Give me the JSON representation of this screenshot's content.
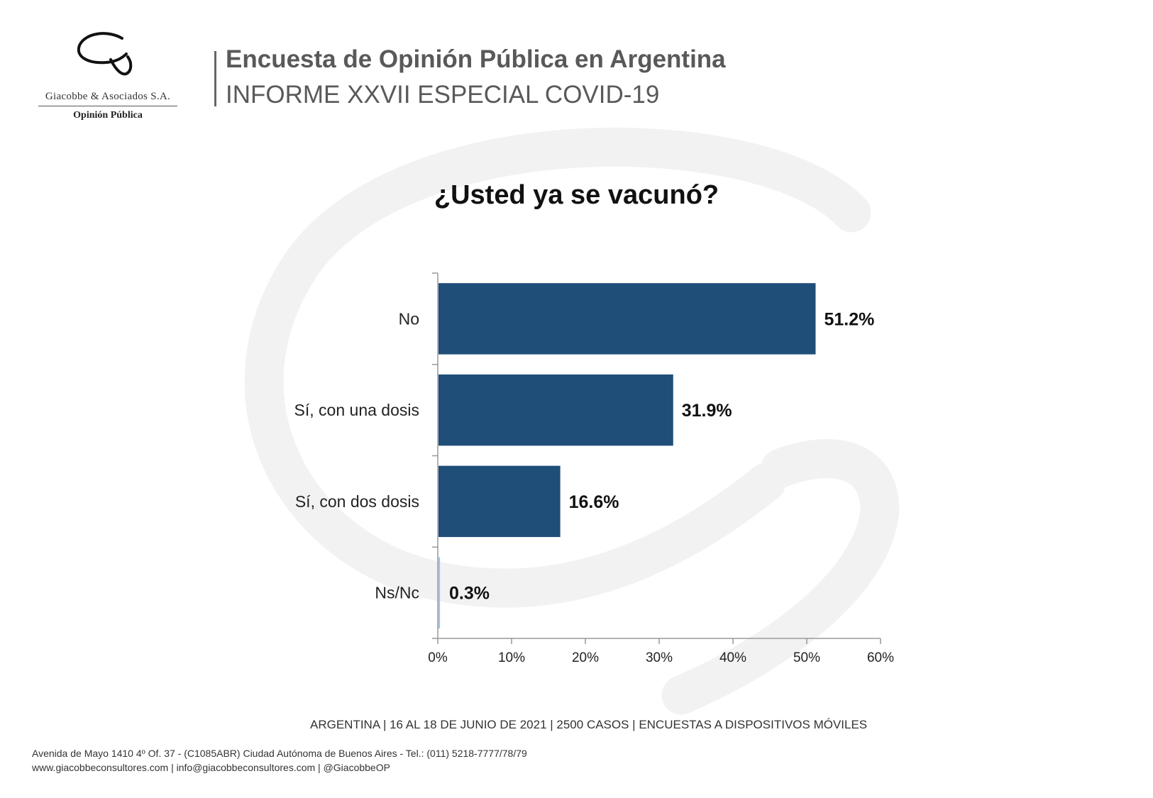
{
  "logo": {
    "firm": "Giacobbe & Asociados S.A.",
    "subtitle": "Opinión Pública"
  },
  "header": {
    "title": "Encuesta de Opinión Pública en Argentina",
    "subtitle": "INFORME XXVII ESPECIAL COVID-19"
  },
  "colors": {
    "bar": "#1F4E79",
    "accent_bar": "#9DC3E6",
    "header_text": "#595959"
  },
  "chart_data": {
    "type": "bar",
    "orientation": "horizontal",
    "title": "¿Usted ya se vacunó?",
    "categories": [
      "No",
      "Sí, con una dosis",
      "Sí, con dos dosis",
      "Ns/Nc"
    ],
    "values": [
      51.2,
      31.9,
      16.6,
      0.3
    ],
    "value_labels": [
      "51.2%",
      "31.9%",
      "16.6%",
      "0.3%"
    ],
    "xlim": [
      0,
      60
    ],
    "xticks": [
      "0%",
      "10%",
      "20%",
      "30%",
      "40%",
      "50%",
      "60%"
    ],
    "grid": false,
    "legend": "none"
  },
  "footer": {
    "survey_info": "ARGENTINA | 16 AL 18 DE JUNIO DE 2021 | 2500 CASOS | ENCUESTAS A DISPOSITIVOS MÓVILES",
    "address": "Avenida de Mayo 1410 4º Of. 37 - (C1085ABR) Ciudad Autónoma de Buenos Aires - Tel.: (011) 5218-7777/78/79",
    "contact": "www.giacobbeconsultores.com | info@giacobbeconsultores.com | @GiacobbeOP"
  }
}
